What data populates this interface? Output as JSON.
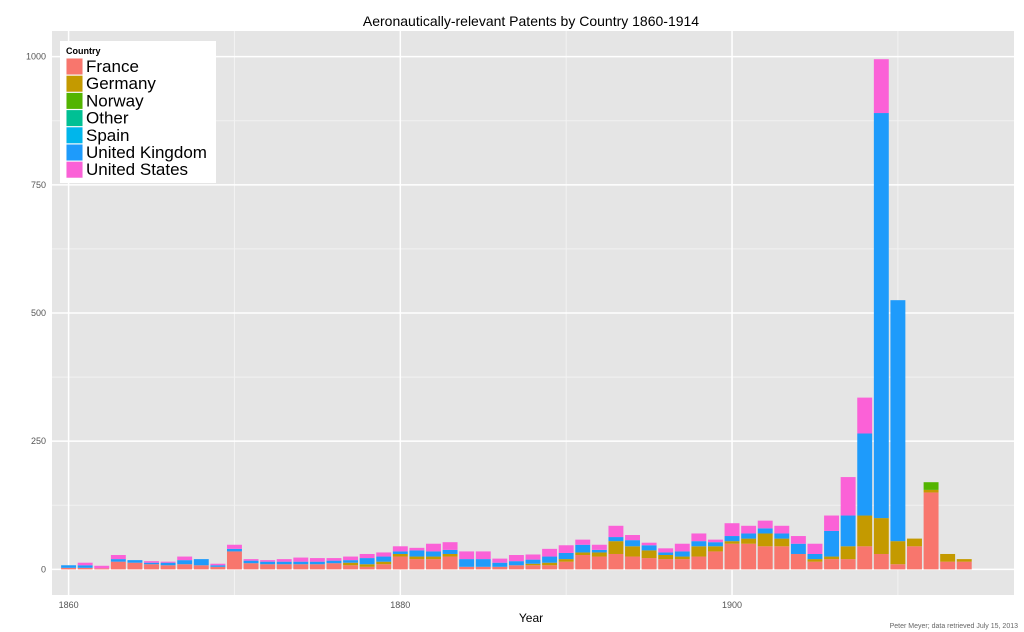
{
  "chart_data": {
    "type": "bar",
    "stacked": true,
    "title": "Aeronautically-relevant Patents by Country 1860-1914",
    "xlabel": "Year",
    "ylabel": "",
    "credit": "Peter Meyer; data retrieved July 15, 2013",
    "xlim": [
      1859,
      1917
    ],
    "ylim": [
      -50,
      1050
    ],
    "x_ticks": [
      1860,
      1880,
      1900
    ],
    "y_ticks": [
      0,
      250,
      500,
      750,
      1000
    ],
    "x_tick_labels": [
      "1860",
      "1880",
      "1900"
    ],
    "y_tick_labels": [
      "0",
      "250",
      "500",
      "750",
      "1000"
    ],
    "grid": true,
    "legend": {
      "title": "Country",
      "position": "top-left",
      "entries": [
        "France",
        "Germany",
        "Norway",
        "Other",
        "Spain",
        "United Kingdom",
        "United States"
      ]
    },
    "colors": {
      "France": "#f8766d",
      "Germany": "#c49a00",
      "Norway": "#53b400",
      "Other": "#00c094",
      "Spain": "#00b6eb",
      "United Kingdom": "#1e9bfb",
      "United States": "#fb61d7",
      "panel_background": "#e5e5e5",
      "grid": "#ffffff"
    },
    "years": [
      1860,
      1861,
      1862,
      1863,
      1864,
      1865,
      1866,
      1867,
      1868,
      1869,
      1870,
      1871,
      1872,
      1873,
      1874,
      1875,
      1876,
      1877,
      1878,
      1879,
      1880,
      1881,
      1882,
      1883,
      1884,
      1885,
      1886,
      1887,
      1888,
      1889,
      1890,
      1891,
      1892,
      1893,
      1894,
      1895,
      1896,
      1897,
      1898,
      1899,
      1900,
      1901,
      1902,
      1903,
      1904,
      1905,
      1906,
      1907,
      1908,
      1909,
      1910,
      1911,
      1912,
      1913,
      1914
    ],
    "series": [
      {
        "name": "France",
        "values": [
          3,
          3,
          2,
          15,
          13,
          10,
          8,
          10,
          8,
          5,
          35,
          12,
          10,
          10,
          10,
          10,
          12,
          8,
          5,
          10,
          25,
          20,
          20,
          25,
          5,
          5,
          5,
          8,
          8,
          8,
          15,
          28,
          25,
          30,
          25,
          22,
          20,
          20,
          25,
          35,
          50,
          50,
          45,
          45,
          30,
          15,
          20,
          20,
          45,
          30,
          10,
          45,
          150,
          15,
          15
        ]
      },
      {
        "name": "Germany",
        "values": [
          0,
          0,
          0,
          0,
          0,
          0,
          0,
          0,
          0,
          0,
          0,
          0,
          0,
          0,
          0,
          0,
          0,
          5,
          5,
          5,
          5,
          5,
          5,
          5,
          0,
          0,
          0,
          0,
          3,
          5,
          5,
          5,
          8,
          25,
          20,
          15,
          8,
          5,
          20,
          10,
          5,
          10,
          25,
          15,
          0,
          5,
          5,
          25,
          60,
          70,
          45,
          15,
          5,
          15,
          5
        ]
      },
      {
        "name": "Norway",
        "values": [
          0,
          0,
          0,
          0,
          0,
          0,
          0,
          0,
          0,
          0,
          0,
          0,
          0,
          0,
          0,
          0,
          0,
          0,
          0,
          0,
          0,
          0,
          0,
          0,
          0,
          0,
          0,
          0,
          0,
          0,
          0,
          0,
          0,
          0,
          0,
          0,
          0,
          0,
          0,
          0,
          0,
          0,
          0,
          0,
          0,
          0,
          0,
          0,
          0,
          0,
          0,
          0,
          15,
          0,
          0
        ]
      },
      {
        "name": "Other",
        "values": [
          0,
          0,
          0,
          0,
          0,
          0,
          0,
          0,
          0,
          0,
          0,
          0,
          0,
          0,
          0,
          0,
          0,
          0,
          0,
          0,
          0,
          0,
          0,
          0,
          0,
          0,
          0,
          0,
          0,
          0,
          0,
          0,
          0,
          0,
          0,
          0,
          0,
          0,
          0,
          0,
          0,
          0,
          0,
          0,
          0,
          0,
          0,
          0,
          0,
          0,
          0,
          0,
          0,
          0,
          0
        ]
      },
      {
        "name": "Spain",
        "values": [
          0,
          0,
          0,
          0,
          0,
          0,
          0,
          0,
          0,
          0,
          0,
          0,
          0,
          0,
          0,
          0,
          0,
          0,
          0,
          0,
          0,
          0,
          0,
          0,
          0,
          0,
          0,
          0,
          0,
          0,
          0,
          0,
          0,
          0,
          0,
          0,
          0,
          0,
          0,
          0,
          0,
          0,
          0,
          0,
          0,
          0,
          0,
          0,
          0,
          0,
          0,
          0,
          0,
          0,
          0
        ]
      },
      {
        "name": "United Kingdom",
        "values": [
          5,
          5,
          0,
          5,
          5,
          3,
          5,
          8,
          12,
          3,
          5,
          5,
          5,
          5,
          5,
          5,
          5,
          5,
          12,
          10,
          5,
          12,
          10,
          8,
          15,
          15,
          8,
          8,
          8,
          12,
          12,
          15,
          5,
          8,
          12,
          10,
          5,
          10,
          10,
          8,
          10,
          10,
          10,
          10,
          20,
          10,
          50,
          60,
          160,
          790,
          470,
          0,
          0,
          0,
          0
        ]
      },
      {
        "name": "United States",
        "values": [
          0,
          5,
          5,
          8,
          0,
          3,
          2,
          7,
          0,
          3,
          8,
          3,
          3,
          5,
          8,
          7,
          5,
          7,
          8,
          8,
          10,
          5,
          15,
          15,
          15,
          15,
          8,
          12,
          10,
          15,
          15,
          10,
          10,
          22,
          10,
          5,
          8,
          15,
          15,
          5,
          25,
          15,
          15,
          15,
          15,
          20,
          30,
          75,
          70,
          105,
          0,
          0,
          0,
          0,
          0
        ]
      }
    ]
  }
}
